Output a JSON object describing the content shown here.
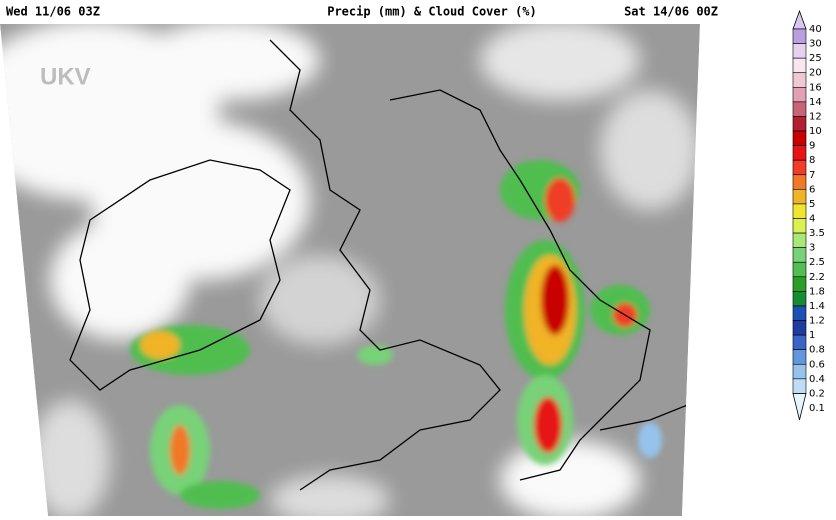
{
  "header": {
    "left": "Wed 11/06 03Z",
    "title": "Precip (mm) & Cloud Cover (%)",
    "right": "Sat 14/06 00Z"
  },
  "map": {
    "label": "UKV"
  },
  "legend": {
    "levels": [
      {
        "label": "40",
        "color": "#d7c8f0"
      },
      {
        "label": "30",
        "color": "#b9a0dc"
      },
      {
        "label": "25",
        "color": "#e6d2f0"
      },
      {
        "label": "20",
        "color": "#fae6f0"
      },
      {
        "label": "16",
        "color": "#f0c8d2"
      },
      {
        "label": "14",
        "color": "#e1a0b4"
      },
      {
        "label": "12",
        "color": "#c86478"
      },
      {
        "label": "10",
        "color": "#b41e32"
      },
      {
        "label": "9",
        "color": "#c80000"
      },
      {
        "label": "8",
        "color": "#e61414"
      },
      {
        "label": "7",
        "color": "#f03c28"
      },
      {
        "label": "6",
        "color": "#f07828"
      },
      {
        "label": "5",
        "color": "#f0b428"
      },
      {
        "label": "4",
        "color": "#f0e632"
      },
      {
        "label": "3.5",
        "color": "#dcf050"
      },
      {
        "label": "3",
        "color": "#aae678"
      },
      {
        "label": "2.5",
        "color": "#78d278"
      },
      {
        "label": "2.2",
        "color": "#50be50"
      },
      {
        "label": "1.8",
        "color": "#28a028"
      },
      {
        "label": "1.4",
        "color": "#148c32"
      },
      {
        "label": "1.2",
        "color": "#1e50b4"
      },
      {
        "label": "1",
        "color": "#1e3ca0"
      },
      {
        "label": "0.8",
        "color": "#3c64c8"
      },
      {
        "label": "0.6",
        "color": "#6496dc"
      },
      {
        "label": "0.4",
        "color": "#96c3eb"
      },
      {
        "label": "0.2",
        "color": "#bedcf5"
      },
      {
        "label": "0.1",
        "color": "#e6f5fa"
      }
    ]
  }
}
